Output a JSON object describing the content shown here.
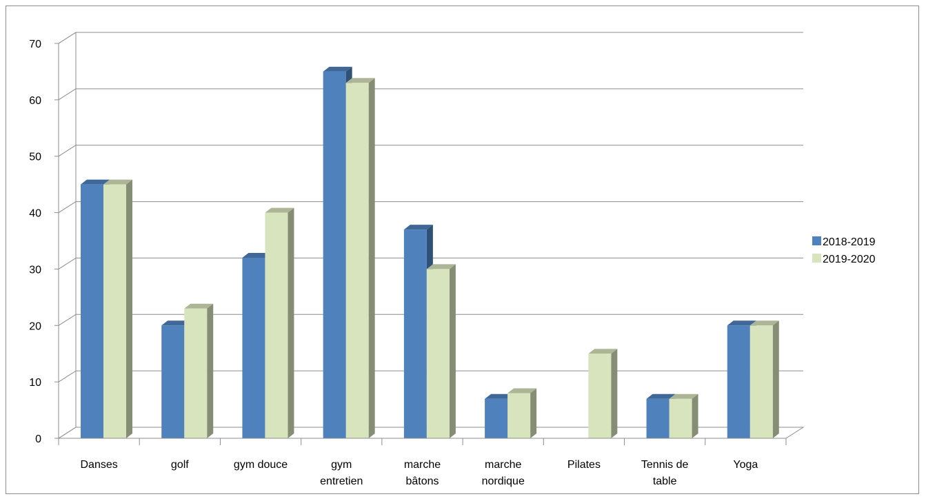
{
  "chart_data": {
    "type": "bar",
    "style": "3d-clustered-column",
    "categories": [
      [
        "Danses"
      ],
      [
        "golf"
      ],
      [
        "gym douce"
      ],
      [
        "gym",
        "entretien"
      ],
      [
        "marche",
        "bâtons"
      ],
      [
        "marche",
        "nordique"
      ],
      [
        "Pilates"
      ],
      [
        "Tennis de",
        "table"
      ],
      [
        "Yoga"
      ]
    ],
    "series": [
      {
        "name": "2018-2019",
        "color": "#4F81BD",
        "values": [
          45,
          20,
          32,
          65,
          37,
          7,
          0,
          7,
          20
        ]
      },
      {
        "name": "2019-2020",
        "color": "#D7E4BD",
        "values": [
          45,
          23,
          40,
          63,
          30,
          8,
          15,
          7,
          20
        ]
      }
    ],
    "ylim": [
      0,
      70
    ],
    "yticks": [
      "0",
      "10",
      "20",
      "30",
      "40",
      "50",
      "60",
      "70"
    ],
    "grid": true,
    "legend": "right",
    "title": "",
    "xlabel": "",
    "ylabel": ""
  }
}
